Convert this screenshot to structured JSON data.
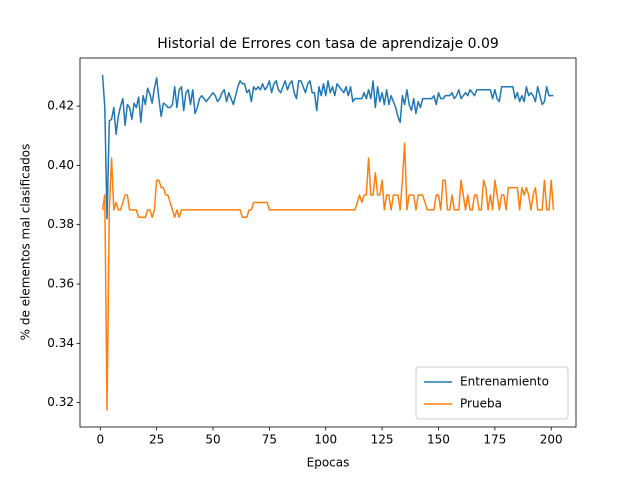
{
  "chart_data": {
    "type": "line",
    "title": "Historial de Errores con tasa de aprendizaje 0.09",
    "xlabel": "Epocas",
    "ylabel": "% de elementos mal clasificados",
    "x": [
      1,
      2,
      3,
      4,
      5,
      6,
      7,
      8,
      9,
      10,
      11,
      12,
      13,
      14,
      15,
      16,
      17,
      18,
      19,
      20,
      21,
      22,
      23,
      24,
      25,
      26,
      27,
      28,
      29,
      30,
      31,
      32,
      33,
      34,
      35,
      36,
      37,
      38,
      39,
      40,
      41,
      42,
      43,
      44,
      45,
      46,
      47,
      48,
      49,
      50,
      51,
      52,
      53,
      54,
      55,
      56,
      57,
      58,
      59,
      60,
      61,
      62,
      63,
      64,
      65,
      66,
      67,
      68,
      69,
      70,
      71,
      72,
      73,
      74,
      75,
      76,
      77,
      78,
      79,
      80,
      81,
      82,
      83,
      84,
      85,
      86,
      87,
      88,
      89,
      90,
      91,
      92,
      93,
      94,
      95,
      96,
      97,
      98,
      99,
      100,
      101,
      102,
      103,
      104,
      105,
      106,
      107,
      108,
      109,
      110,
      111,
      112,
      113,
      114,
      115,
      116,
      117,
      118,
      119,
      120,
      121,
      122,
      123,
      124,
      125,
      126,
      127,
      128,
      129,
      130,
      131,
      132,
      133,
      134,
      135,
      136,
      137,
      138,
      139,
      140,
      141,
      142,
      143,
      144,
      145,
      146,
      147,
      148,
      149,
      150,
      151,
      152,
      153,
      154,
      155,
      156,
      157,
      158,
      159,
      160,
      161,
      162,
      163,
      164,
      165,
      166,
      167,
      168,
      169,
      170,
      171,
      172,
      173,
      174,
      175,
      176,
      177,
      178,
      179,
      180,
      181,
      182,
      183,
      184,
      185,
      186,
      187,
      188,
      189,
      190,
      191,
      192,
      193,
      194,
      195,
      196,
      197,
      198,
      199,
      200,
      201
    ],
    "series": [
      {
        "name": "Entrenamiento",
        "color": "#1f77b4",
        "values": [
          0.4305,
          0.4195,
          0.382,
          0.415,
          0.4155,
          0.4195,
          0.4105,
          0.4165,
          0.42,
          0.4225,
          0.4135,
          0.4205,
          0.4195,
          0.4155,
          0.421,
          0.4195,
          0.423,
          0.4145,
          0.4235,
          0.4205,
          0.426,
          0.424,
          0.421,
          0.426,
          0.4295,
          0.4225,
          0.4165,
          0.421,
          0.4205,
          0.4195,
          0.4195,
          0.4205,
          0.4265,
          0.4195,
          0.4255,
          0.4265,
          0.4185,
          0.4245,
          0.4255,
          0.4205,
          0.4255,
          0.4175,
          0.4195,
          0.4225,
          0.4235,
          0.4225,
          0.4215,
          0.4225,
          0.4235,
          0.4245,
          0.4235,
          0.4215,
          0.4225,
          0.4245,
          0.4255,
          0.4215,
          0.4245,
          0.4225,
          0.4205,
          0.4235,
          0.4265,
          0.4285,
          0.4275,
          0.4275,
          0.4245,
          0.4255,
          0.4215,
          0.4265,
          0.4255,
          0.4265,
          0.4255,
          0.4275,
          0.4255,
          0.4265,
          0.4285,
          0.4245,
          0.4275,
          0.4285,
          0.4255,
          0.4245,
          0.4265,
          0.4285,
          0.4255,
          0.4275,
          0.4285,
          0.4245,
          0.4225,
          0.4285,
          0.4285,
          0.4265,
          0.4245,
          0.4275,
          0.4285,
          0.4245,
          0.4245,
          0.4185,
          0.4265,
          0.4235,
          0.4275,
          0.4235,
          0.4285,
          0.4245,
          0.4265,
          0.4235,
          0.4275,
          0.4265,
          0.4255,
          0.4245,
          0.4265,
          0.4235,
          0.4265,
          0.4215,
          0.4225,
          0.4225,
          0.4225,
          0.4225,
          0.4245,
          0.4225,
          0.4255,
          0.4225,
          0.4285,
          0.4195,
          0.4265,
          0.4215,
          0.4245,
          0.4205,
          0.4255,
          0.4205,
          0.4235,
          0.4215,
          0.4195,
          0.4165,
          0.4145,
          0.4235,
          0.4205,
          0.4255,
          0.4205,
          0.4185,
          0.4225,
          0.4175,
          0.4215,
          0.4195,
          0.4225,
          0.4225,
          0.4225,
          0.4225,
          0.4225,
          0.4235,
          0.4205,
          0.4245,
          0.4225,
          0.4225,
          0.4235,
          0.4235,
          0.4235,
          0.4245,
          0.4225,
          0.4235,
          0.4255,
          0.4225,
          0.4235,
          0.4245,
          0.4235,
          0.4255,
          0.4245,
          0.4235,
          0.4255,
          0.4255,
          0.4255,
          0.4255,
          0.4255,
          0.4255,
          0.4255,
          0.4225,
          0.4255,
          0.4225,
          0.4215,
          0.4265,
          0.4265,
          0.4265,
          0.4265,
          0.4265,
          0.4265,
          0.4225,
          0.4245,
          0.4215,
          0.4235,
          0.4215,
          0.4265,
          0.4235,
          0.4245,
          0.4235,
          0.4215,
          0.4265,
          0.4235,
          0.4205,
          0.4215,
          0.4265,
          0.4235,
          0.4235,
          0.4235
        ]
      },
      {
        "name": "Prueba",
        "color": "#ff7f0e",
        "values": [
          0.385,
          0.39,
          0.3175,
          0.385,
          0.4025,
          0.385,
          0.3875,
          0.385,
          0.385,
          0.3875,
          0.39,
          0.39,
          0.385,
          0.385,
          0.385,
          0.385,
          0.3825,
          0.3825,
          0.3825,
          0.3825,
          0.385,
          0.385,
          0.3825,
          0.385,
          0.395,
          0.395,
          0.3925,
          0.3925,
          0.39,
          0.39,
          0.3875,
          0.385,
          0.3825,
          0.385,
          0.3825,
          0.385,
          0.385,
          0.385,
          0.385,
          0.385,
          0.385,
          0.385,
          0.385,
          0.385,
          0.385,
          0.385,
          0.385,
          0.385,
          0.385,
          0.385,
          0.385,
          0.385,
          0.385,
          0.385,
          0.385,
          0.385,
          0.385,
          0.385,
          0.385,
          0.385,
          0.385,
          0.385,
          0.3825,
          0.3825,
          0.3825,
          0.385,
          0.385,
          0.3875,
          0.3875,
          0.3875,
          0.3875,
          0.3875,
          0.3875,
          0.3875,
          0.385,
          0.385,
          0.385,
          0.385,
          0.385,
          0.385,
          0.385,
          0.385,
          0.385,
          0.385,
          0.385,
          0.385,
          0.385,
          0.385,
          0.385,
          0.385,
          0.385,
          0.385,
          0.385,
          0.385,
          0.385,
          0.385,
          0.385,
          0.385,
          0.385,
          0.385,
          0.385,
          0.385,
          0.385,
          0.385,
          0.385,
          0.385,
          0.385,
          0.385,
          0.385,
          0.385,
          0.385,
          0.385,
          0.385,
          0.3875,
          0.39,
          0.3875,
          0.39,
          0.39,
          0.4025,
          0.39,
          0.39,
          0.3975,
          0.39,
          0.39,
          0.395,
          0.385,
          0.39,
          0.39,
          0.385,
          0.39,
          0.39,
          0.39,
          0.385,
          0.395,
          0.4075,
          0.385,
          0.39,
          0.39,
          0.39,
          0.385,
          0.39,
          0.39,
          0.39,
          0.3875,
          0.385,
          0.385,
          0.385,
          0.385,
          0.39,
          0.39,
          0.385,
          0.395,
          0.395,
          0.385,
          0.385,
          0.39,
          0.385,
          0.385,
          0.385,
          0.395,
          0.39,
          0.385,
          0.39,
          0.385,
          0.385,
          0.39,
          0.39,
          0.385,
          0.385,
          0.395,
          0.3925,
          0.385,
          0.39,
          0.385,
          0.395,
          0.39,
          0.385,
          0.39,
          0.39,
          0.385,
          0.3925,
          0.3925,
          0.3925,
          0.3925,
          0.3925,
          0.385,
          0.3925,
          0.39,
          0.3925,
          0.39,
          0.385,
          0.39,
          0.3925,
          0.385,
          0.385,
          0.385,
          0.395,
          0.385,
          0.385,
          0.395,
          0.385
        ]
      }
    ],
    "xlim": [
      -9,
      211
    ],
    "xticks": [
      0,
      25,
      50,
      75,
      100,
      125,
      150,
      175,
      200
    ],
    "ylim": [
      0.3118,
      0.4362
    ],
    "yticks": [
      0.32,
      0.34,
      0.36,
      0.38,
      {
        "value": 0.4,
        "label": "0.40"
      },
      0.42
    ],
    "legend": "lower right"
  }
}
